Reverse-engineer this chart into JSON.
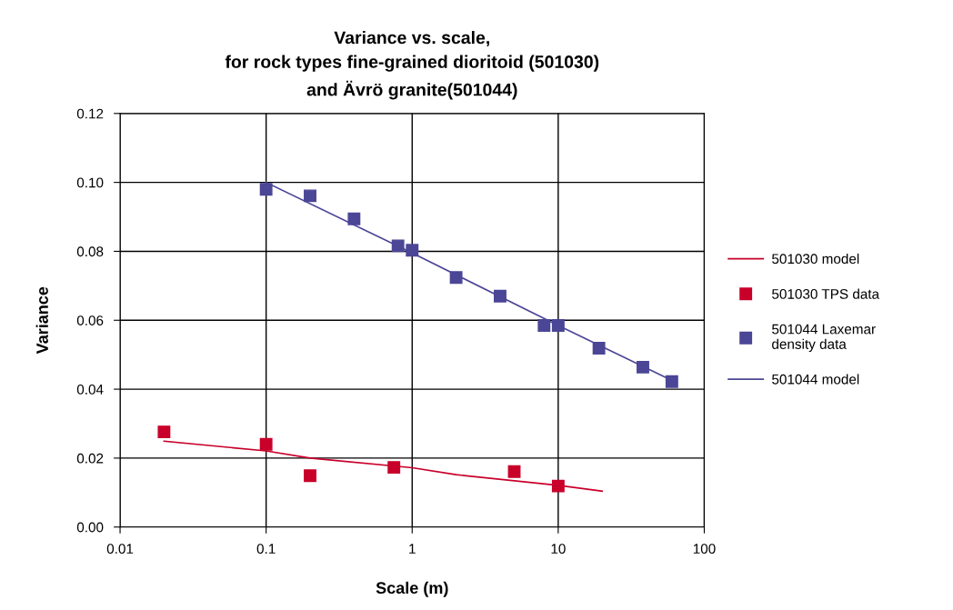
{
  "chart_data": {
    "type": "scatter",
    "title": "Variance vs. scale,\nfor rock types fine-grained dioritoid (501030)\nand Ävrö granite(501044)",
    "xlabel": "Scale (m)",
    "ylabel": "Variance",
    "log": "x",
    "xlim": [
      0.01,
      100
    ],
    "xticks": [
      0.01,
      0.1,
      1,
      10,
      100
    ],
    "ylim": [
      0,
      0.12
    ],
    "yticks": [
      {
        "value": 0,
        "label": "0.00"
      },
      {
        "value": 0.02,
        "label": "0.02"
      },
      {
        "value": 0.04,
        "label": "0.04"
      },
      {
        "value": 0.06,
        "label": "0.06"
      },
      {
        "value": 0.08,
        "label": "0.08"
      },
      {
        "value": 0.1,
        "label": "0.10"
      },
      {
        "value": 0.12,
        "label": "0.12"
      }
    ],
    "grid": true,
    "legend": "right",
    "series": [
      {
        "name": "501030 model",
        "type": "line",
        "color": "#c8002a",
        "marker": "none",
        "line_style": "solid",
        "x": [
          0.02,
          0.1,
          0.2,
          1,
          2,
          10,
          20
        ],
        "values": [
          0.0249,
          0.0221,
          0.02,
          0.0172,
          0.0152,
          0.0121,
          0.0104
        ]
      },
      {
        "name": "501030 TPS data",
        "color": "#c8002a",
        "marker": "square",
        "x": [
          0.02,
          0.1,
          0.2,
          0.75,
          5,
          10
        ],
        "values": [
          0.0276,
          0.024,
          0.0149,
          0.0173,
          0.0161,
          0.0119
        ]
      },
      {
        "name": "501044 Laxemar\ndensity data",
        "color": "#4b4696",
        "marker": "square",
        "x": [
          0.1,
          0.2,
          0.4,
          0.8,
          1,
          2,
          4,
          8,
          10,
          19,
          38,
          60
        ],
        "values": [
          0.098,
          0.0961,
          0.0894,
          0.0816,
          0.0803,
          0.0724,
          0.067,
          0.0585,
          0.0585,
          0.0519,
          0.0464,
          0.0422
        ]
      },
      {
        "name": "501044 model",
        "type": "line",
        "color": "#4b4696",
        "marker": "none",
        "line_style": "solid",
        "x": [
          0.1,
          1,
          10,
          64
        ],
        "values": [
          0.1,
          0.0795,
          0.0585,
          0.042
        ]
      }
    ]
  }
}
